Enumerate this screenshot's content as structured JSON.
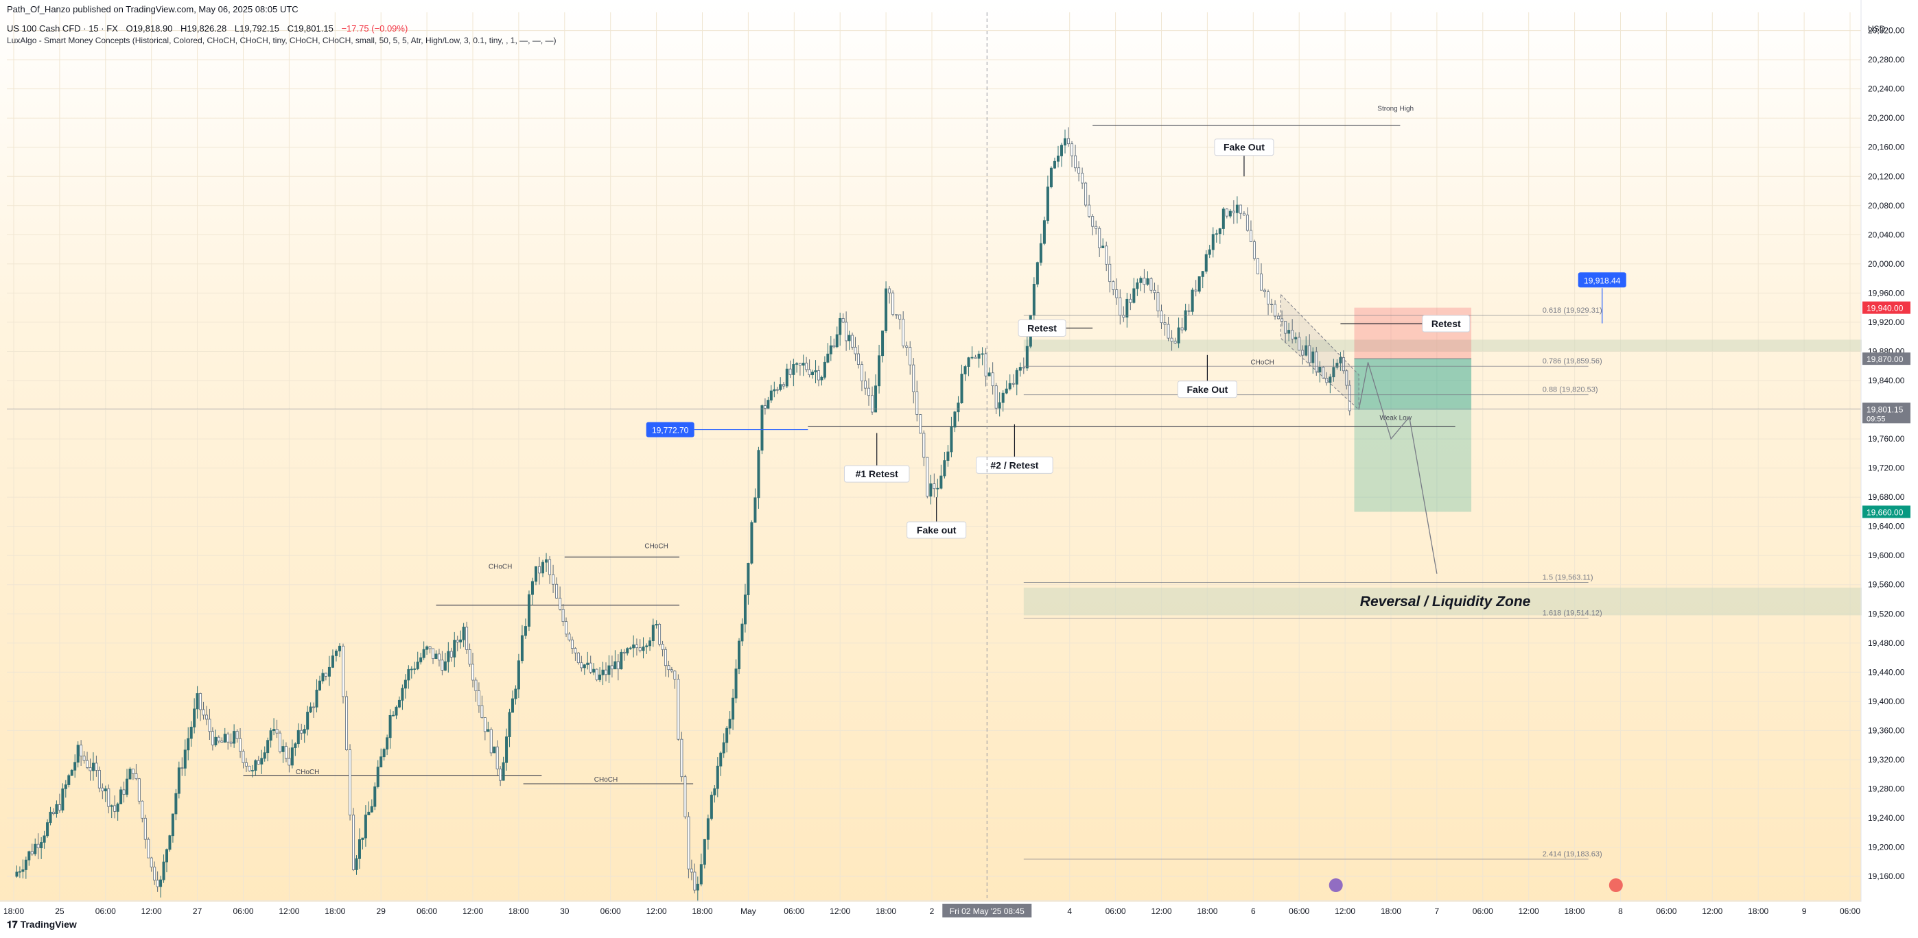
{
  "header": {
    "published": "Path_Of_Hanzo published on TradingView.com, May 06, 2025 08:05 UTC",
    "symbol": "US 100 Cash CFD · 15 · FX",
    "ohlc": {
      "open": "O19,818.90",
      "high": "H19,826.28",
      "low": "L19,792.15",
      "close": "C19,801.15",
      "change": "−17.75 (−0.09%)"
    },
    "indicator": "LuxAlgo - Smart Money Concepts (Historical, Colored, CHoCH, CHoCH, tiny, CHoCH, CHoCH, small, 50, 5, 5, Atr, High/Low, 3, 0.1, tiny, , 1, —, —, —)"
  },
  "footer": {
    "brand": "TradingView"
  },
  "colors": {
    "up": "#26a69a",
    "down": "#5d6c7a",
    "candle": "#2f6f73",
    "red": "#f23645",
    "green": "#089981",
    "blue": "#2962ff",
    "fib": "#787b86"
  },
  "chart_data": {
    "type": "candlestick",
    "currency": "USD",
    "ylim": [
      19130,
      20345
    ],
    "y_ticks": [
      "20,320.00",
      "20,280.00",
      "20,240.00",
      "20,200.00",
      "20,160.00",
      "20,120.00",
      "20,080.00",
      "20,040.00",
      "20,000.00",
      "19,960.00",
      "19,920.00",
      "19,880.00",
      "19,840.00",
      "19,800.00",
      "19,760.00",
      "19,720.00",
      "19,680.00",
      "19,640.00",
      "19,600.00",
      "19,560.00",
      "19,520.00",
      "19,480.00",
      "19,440.00",
      "19,400.00",
      "19,360.00",
      "19,320.00",
      "19,280.00",
      "19,240.00",
      "19,200.00",
      "19,160.00"
    ],
    "x_ticks": [
      {
        "label": "18:00",
        "t": 0
      },
      {
        "label": "25",
        "t": 1
      },
      {
        "label": "06:00",
        "t": 2
      },
      {
        "label": "12:00",
        "t": 3
      },
      {
        "label": "27",
        "t": 4
      },
      {
        "label": "06:00",
        "t": 5
      },
      {
        "label": "12:00",
        "t": 6
      },
      {
        "label": "18:00",
        "t": 7
      },
      {
        "label": "29",
        "t": 8
      },
      {
        "label": "06:00",
        "t": 9
      },
      {
        "label": "12:00",
        "t": 10
      },
      {
        "label": "18:00",
        "t": 11
      },
      {
        "label": "30",
        "t": 12
      },
      {
        "label": "06:00",
        "t": 13
      },
      {
        "label": "12:00",
        "t": 14
      },
      {
        "label": "18:00",
        "t": 15
      },
      {
        "label": "May",
        "t": 16
      },
      {
        "label": "06:00",
        "t": 17
      },
      {
        "label": "12:00",
        "t": 18
      },
      {
        "label": "18:00",
        "t": 19
      },
      {
        "label": "2",
        "t": 20
      },
      {
        "label": "4",
        "t": 23
      },
      {
        "label": "06:00",
        "t": 24
      },
      {
        "label": "12:00",
        "t": 25
      },
      {
        "label": "18:00",
        "t": 26
      },
      {
        "label": "6",
        "t": 27
      },
      {
        "label": "06:00",
        "t": 28
      },
      {
        "label": "12:00",
        "t": 29
      },
      {
        "label": "18:00",
        "t": 30
      },
      {
        "label": "7",
        "t": 31
      },
      {
        "label": "06:00",
        "t": 32
      },
      {
        "label": "12:00",
        "t": 33
      },
      {
        "label": "18:00",
        "t": 34
      },
      {
        "label": "8",
        "t": 35
      },
      {
        "label": "06:00",
        "t": 36
      },
      {
        "label": "12:00",
        "t": 37
      },
      {
        "label": "18:00",
        "t": 38
      },
      {
        "label": "9",
        "t": 39
      },
      {
        "label": "06:00",
        "t": 40
      }
    ],
    "crosshair_label": "Fri 02 May '25   08:45",
    "crosshair_t": 21.2,
    "price_path": [
      [
        0,
        19160
      ],
      [
        0.6,
        19215
      ],
      [
        1,
        19260
      ],
      [
        1.4,
        19330
      ],
      [
        1.8,
        19300
      ],
      [
        2.2,
        19250
      ],
      [
        2.6,
        19310
      ],
      [
        3,
        19170
      ],
      [
        3.2,
        19150
      ],
      [
        3.6,
        19300
      ],
      [
        4,
        19400
      ],
      [
        4.4,
        19340
      ],
      [
        4.8,
        19350
      ],
      [
        5.2,
        19300
      ],
      [
        5.6,
        19360
      ],
      [
        6,
        19320
      ],
      [
        6.4,
        19380
      ],
      [
        6.8,
        19440
      ],
      [
        7.1,
        19480
      ],
      [
        7.4,
        19180
      ],
      [
        7.8,
        19260
      ],
      [
        8.2,
        19380
      ],
      [
        8.6,
        19440
      ],
      [
        9,
        19470
      ],
      [
        9.4,
        19450
      ],
      [
        9.8,
        19500
      ],
      [
        10.2,
        19380
      ],
      [
        10.6,
        19300
      ],
      [
        11,
        19450
      ],
      [
        11.3,
        19570
      ],
      [
        11.6,
        19590
      ],
      [
        11.9,
        19520
      ],
      [
        12.3,
        19460
      ],
      [
        12.7,
        19430
      ],
      [
        13.1,
        19450
      ],
      [
        13.5,
        19470
      ],
      [
        14,
        19500
      ],
      [
        14.4,
        19420
      ],
      [
        14.7,
        19170
      ],
      [
        14.9,
        19140
      ],
      [
        15.2,
        19270
      ],
      [
        15.6,
        19380
      ],
      [
        16,
        19580
      ],
      [
        16.3,
        19800
      ],
      [
        16.7,
        19840
      ],
      [
        17.2,
        19860
      ],
      [
        17.6,
        19850
      ],
      [
        18,
        19920
      ],
      [
        18.4,
        19870
      ],
      [
        18.7,
        19790
      ],
      [
        19,
        19960
      ],
      [
        19.3,
        19920
      ],
      [
        19.6,
        19830
      ],
      [
        19.9,
        19690
      ],
      [
        20.2,
        19700
      ],
      [
        20.5,
        19800
      ],
      [
        20.8,
        19880
      ],
      [
        21.1,
        19870
      ],
      [
        21.4,
        19810
      ],
      [
        21.7,
        19830
      ],
      [
        22,
        19860
      ],
      [
        22.3,
        20000
      ],
      [
        22.6,
        20140
      ],
      [
        22.9,
        20170
      ],
      [
        23.2,
        20120
      ],
      [
        23.5,
        20060
      ],
      [
        23.8,
        20000
      ],
      [
        24.1,
        19930
      ],
      [
        24.4,
        19960
      ],
      [
        24.7,
        19990
      ],
      [
        25,
        19910
      ],
      [
        25.3,
        19900
      ],
      [
        25.6,
        19940
      ],
      [
        25.9,
        20000
      ],
      [
        26.2,
        20050
      ],
      [
        26.5,
        20080
      ],
      [
        26.8,
        20060
      ],
      [
        27.1,
        19980
      ],
      [
        27.4,
        19940
      ],
      [
        27.7,
        19910
      ],
      [
        28,
        19890
      ],
      [
        28.3,
        19870
      ],
      [
        28.6,
        19840
      ],
      [
        28.9,
        19880
      ],
      [
        29.1,
        19800
      ]
    ],
    "annotations": [
      {
        "text": "Fake Out",
        "t": 26.8,
        "y": 20160,
        "line_to": 20120
      },
      {
        "text": "Retest",
        "t": 22.4,
        "y": 19912,
        "arrow_to_t": 23.5
      },
      {
        "text": "Retest",
        "t": 31.2,
        "y": 19918,
        "arrow_from_t": 28.9
      },
      {
        "text": "Fake Out",
        "t": 26,
        "y": 19828,
        "line_to": 19875
      },
      {
        "text": "#1 Retest",
        "t": 18.8,
        "y": 19712,
        "line_to": 19768
      },
      {
        "text": "#2 / Retest",
        "t": 21.8,
        "y": 19724,
        "line_to": 19780
      },
      {
        "text": "Fake out",
        "t": 20.1,
        "y": 19635,
        "line_to": 19680
      }
    ],
    "structure_labels": [
      {
        "text": "CHoCH",
        "t": 14,
        "y": 19610
      },
      {
        "text": "CHoCH",
        "t": 10.6,
        "y": 19582
      },
      {
        "text": "CHoCH",
        "t": 6.4,
        "y": 19300
      },
      {
        "text": "CHoCH",
        "t": 12.9,
        "y": 19290
      },
      {
        "text": "CHoCH",
        "t": 27.2,
        "y": 19862
      },
      {
        "text": "Strong High",
        "t": 30.1,
        "y": 20210
      },
      {
        "text": "Weak Low",
        "t": 30.1,
        "y": 19786
      }
    ],
    "levels": [
      {
        "t1": 23.5,
        "t2": 30.2,
        "y": 20190
      },
      {
        "t1": 17.3,
        "t2": 31.4,
        "y": 19777
      },
      {
        "t1": 12,
        "t2": 14.5,
        "y": 19598
      },
      {
        "t1": 9.2,
        "t2": 14.5,
        "y": 19532
      },
      {
        "t1": 5,
        "t2": 11.5,
        "y": 19298
      },
      {
        "t1": 11.1,
        "t2": 14.8,
        "y": 19287
      }
    ],
    "fib_levels": [
      {
        "label": "0.618 (19,929.31)",
        "y": 19929.31
      },
      {
        "label": "0.786 (19,859.56)",
        "y": 19859.56
      },
      {
        "label": "0.88 (19,820.53)",
        "y": 19820.53
      },
      {
        "label": "1.5 (19,563.11)",
        "y": 19563.11
      },
      {
        "label": "1.618 (19,514.12)",
        "y": 19514.12
      },
      {
        "label": "2.414 (19,183.63)",
        "y": 19183.63
      }
    ],
    "position": {
      "t1": 29.2,
      "t2": 31.75,
      "stop": 19940,
      "entry": 19870,
      "target": 19660
    },
    "zones": [
      {
        "label": "Reversal / Liquidity Zone",
        "t1": 22,
        "t2": 40.6,
        "y1": 19518,
        "y2": 19556
      },
      {
        "label": "",
        "t1": 22,
        "t2": 40.6,
        "y1": 19880,
        "y2": 19896
      }
    ],
    "price_tags": [
      {
        "text": "19,772.70",
        "t": 14.3,
        "y": 19772.7,
        "color": "#2962ff",
        "line_to_t": 17.3
      },
      {
        "text": "19,918.44",
        "t": 34.6,
        "y": 19978,
        "color": "#2962ff",
        "arrow_down_to": 19918.44
      }
    ],
    "axis_tags": [
      {
        "text": "19,940.00",
        "y": 19940,
        "color": "#f23645"
      },
      {
        "text": "19,870.00",
        "y": 19870,
        "color": "#787b86"
      },
      {
        "text": "19,801.15",
        "sub": "09:55",
        "y": 19801.15,
        "color": "#787b86"
      },
      {
        "text": "19,660.00",
        "y": 19660,
        "color": "#089981"
      }
    ]
  }
}
